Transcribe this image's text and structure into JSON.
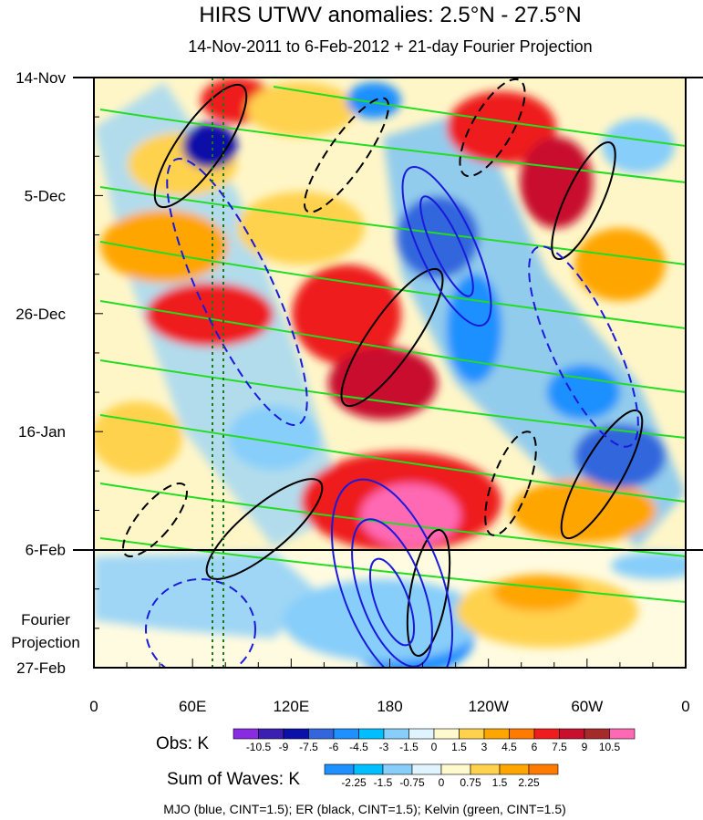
{
  "chart_data": {
    "type": "heatmap",
    "title": "HIRS UTWV anomalies: 2.5°N - 27.5°N",
    "subtitle": "14-Nov-2011 to 6-Feb-2012 + 21-day Fourier Projection",
    "x_ticks": [
      "0",
      "60E",
      "120E",
      "180",
      "120W",
      "60W",
      "0"
    ],
    "y_ticks": [
      "14-Nov",
      "5-Dec",
      "26-Dec",
      "16-Jan",
      "6-Feb",
      "27-Feb"
    ],
    "projection_label": [
      "Fourier",
      "Projection"
    ],
    "obs_bar": {
      "label": "Obs: K",
      "levels": [
        "-10.5",
        "-9",
        "-7.5",
        "-6",
        "-4.5",
        "-3",
        "-1.5",
        "0",
        "1.5",
        "3",
        "4.5",
        "6",
        "7.5",
        "9",
        "10.5"
      ],
      "colors": [
        "#8a2be2",
        "#3a1fb0",
        "#0a10a8",
        "#3366dd",
        "#1e90ff",
        "#00bfff",
        "#87cefa",
        "#e0f4ff",
        "#fffacd",
        "#ffd24d",
        "#ffa500",
        "#ff7a00",
        "#ee1c1c",
        "#c8102e",
        "#a52a2a",
        "#ff69b4"
      ]
    },
    "waves_bar": {
      "label": "Sum of Waves: K",
      "levels": [
        "-2.25",
        "-1.5",
        "-0.75",
        "0",
        "0.75",
        "1.5",
        "2.25"
      ],
      "colors": [
        "#1e90ff",
        "#00bfff",
        "#87cefa",
        "#e0f4ff",
        "#fffacd",
        "#ffd24d",
        "#ffa500",
        "#ff7a00"
      ]
    },
    "footer": "MJO (blue, CINT=1.5); ER (black, CINT=1.5); Kelvin (green, CINT=1.5)",
    "contour_colors": {
      "mjo": "#1a1adc",
      "er": "#000000",
      "kelvin": "#22dd22"
    }
  }
}
